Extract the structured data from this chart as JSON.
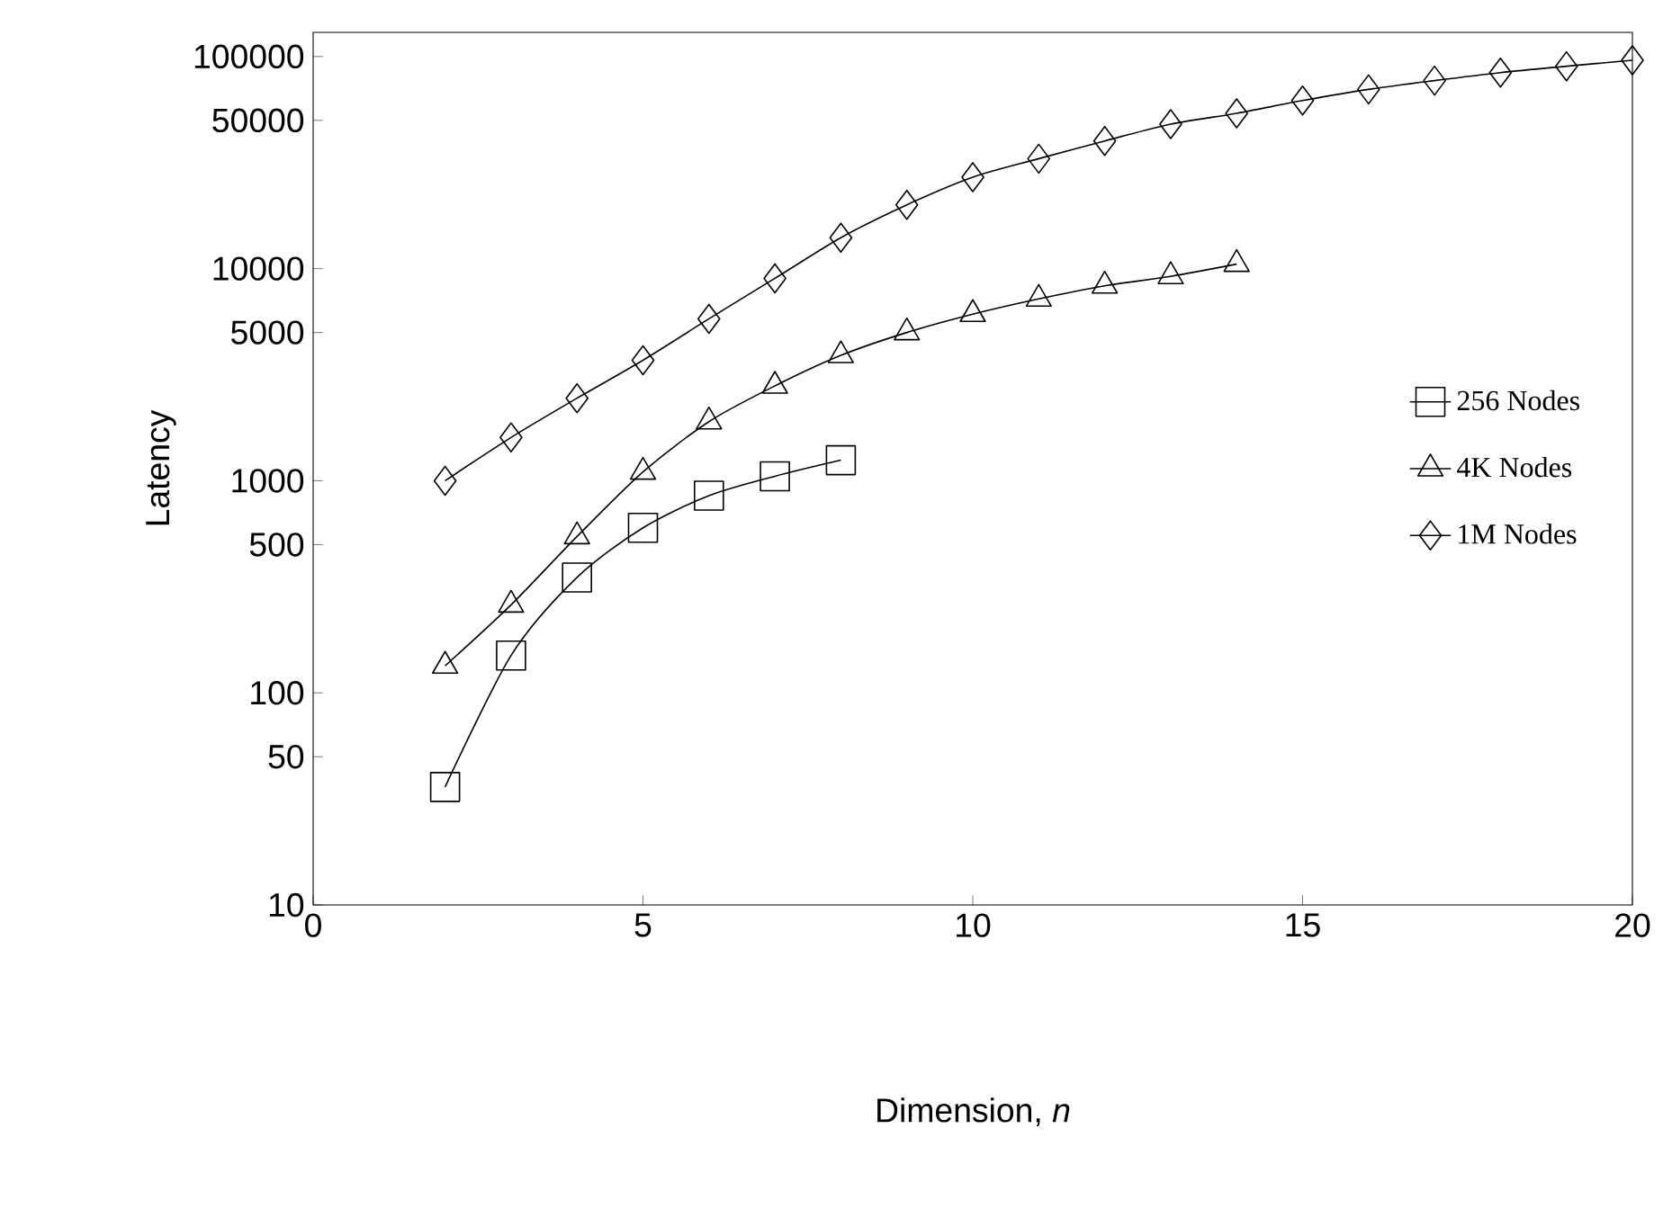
{
  "chart_data": {
    "type": "line",
    "xlabel": "Dimension, *n*",
    "ylabel": "Latency",
    "log": "y",
    "xlim": [
      0,
      20
    ],
    "ylim": [
      10,
      130000
    ],
    "xticks": [
      0,
      5,
      10,
      15,
      20
    ],
    "yticks": [
      10,
      50,
      100,
      500,
      1000,
      5000,
      10000,
      50000,
      100000
    ],
    "grid": false,
    "legend": "right",
    "line_style": "solid",
    "series": [
      {
        "name": "256 Nodes",
        "color": "#000000",
        "marker": "square",
        "x": [
          2,
          3,
          4,
          5,
          6,
          7,
          8
        ],
        "values": [
          36,
          150,
          350,
          600,
          850,
          1050,
          1250
        ]
      },
      {
        "name": "4K Nodes",
        "color": "#000000",
        "marker": "triangle",
        "x": [
          2,
          3,
          4,
          5,
          6,
          7,
          8,
          9,
          10,
          11,
          12,
          13,
          14
        ],
        "values": [
          134,
          260,
          546,
          1100,
          1900,
          2800,
          3900,
          5000,
          6100,
          7200,
          8300,
          9200,
          10500
        ]
      },
      {
        "name": "1M Nodes",
        "color": "#000000",
        "marker": "diamond",
        "x": [
          2,
          3,
          4,
          5,
          6,
          7,
          8,
          9,
          10,
          11,
          12,
          13,
          14,
          15,
          16,
          17,
          18,
          19,
          20
        ],
        "values": [
          1000,
          1600,
          2450,
          3700,
          5800,
          9000,
          14000,
          20000,
          27000,
          33000,
          40000,
          48000,
          54000,
          62000,
          70000,
          77000,
          84000,
          90000,
          96000
        ]
      }
    ]
  }
}
